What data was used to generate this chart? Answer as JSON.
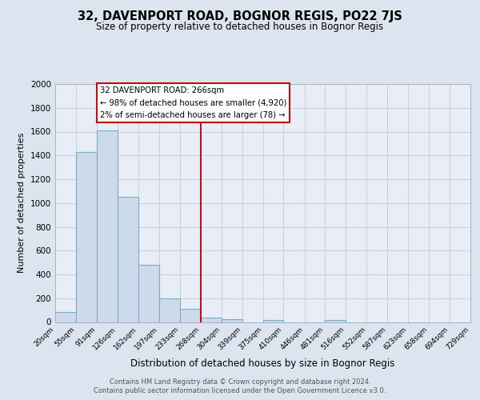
{
  "title": "32, DAVENPORT ROAD, BOGNOR REGIS, PO22 7JS",
  "subtitle": "Size of property relative to detached houses in Bognor Regis",
  "xlabel": "Distribution of detached houses by size in Bognor Regis",
  "ylabel": "Number of detached properties",
  "bin_edges": [
    20,
    55,
    91,
    126,
    162,
    197,
    233,
    268,
    304,
    339,
    375,
    410,
    446,
    481,
    516,
    552,
    587,
    623,
    658,
    694,
    729
  ],
  "bin_labels": [
    "20sqm",
    "55sqm",
    "91sqm",
    "126sqm",
    "162sqm",
    "197sqm",
    "233sqm",
    "268sqm",
    "304sqm",
    "339sqm",
    "375sqm",
    "410sqm",
    "446sqm",
    "481sqm",
    "516sqm",
    "552sqm",
    "587sqm",
    "623sqm",
    "658sqm",
    "694sqm",
    "729sqm"
  ],
  "counts": [
    85,
    1430,
    1610,
    1050,
    480,
    200,
    110,
    40,
    25,
    0,
    15,
    0,
    0,
    15,
    0,
    0,
    0,
    0,
    0,
    0
  ],
  "bar_color": "#ccdaeb",
  "bar_edge_color": "#7aabcc",
  "vline_x": 268,
  "vline_color": "#bb1111",
  "ylim": [
    0,
    2000
  ],
  "yticks": [
    0,
    200,
    400,
    600,
    800,
    1000,
    1200,
    1400,
    1600,
    1800,
    2000
  ],
  "annotation_title": "32 DAVENPORT ROAD: 266sqm",
  "annotation_line1": "← 98% of detached houses are smaller (4,920)",
  "annotation_line2": "2% of semi-detached houses are larger (78) →",
  "annotation_box_color": "#ffffff",
  "annotation_box_edge": "#bb1111",
  "footer1": "Contains HM Land Registry data © Crown copyright and database right 2024.",
  "footer2": "Contains public sector information licensed under the Open Government Licence v3.0.",
  "bg_color": "#dce4f0",
  "plot_bg_color": "#e8edf6",
  "grid_color": "#c8cede"
}
